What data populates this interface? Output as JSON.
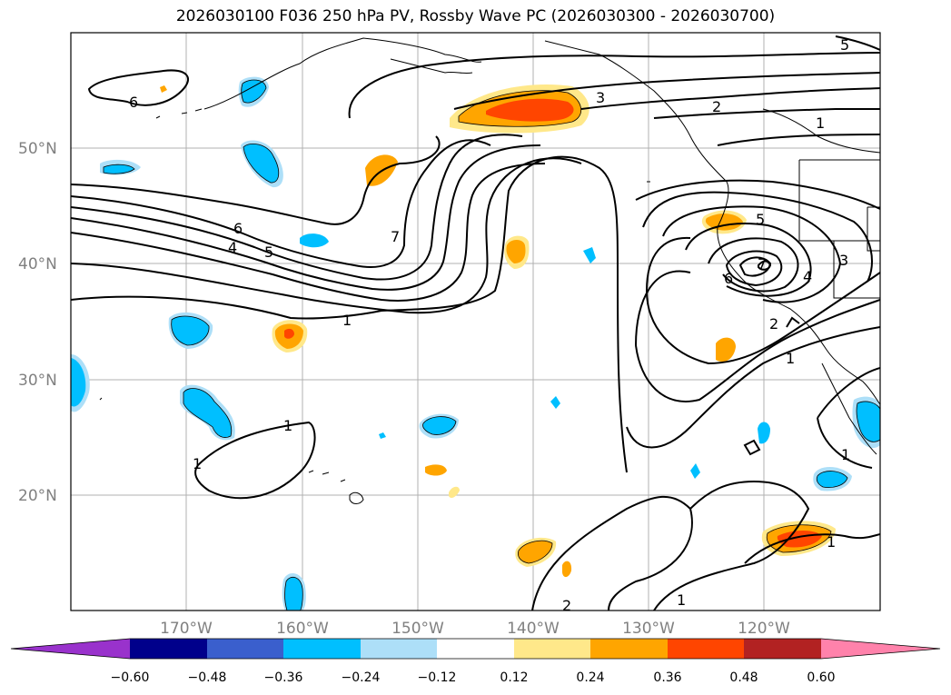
{
  "title": "2026030100 F036 250 hPa PV, Rossby Wave PC (2026030300 - 2026030700)",
  "map": {
    "lat_labels": [
      "50°N",
      "40°N",
      "30°N",
      "20°N"
    ],
    "lon_labels": [
      "170°W",
      "160°W",
      "150°W",
      "140°W",
      "130°W",
      "120°W"
    ],
    "contour_labels": [
      "6",
      "7",
      "6",
      "5",
      "4",
      "1",
      "1",
      "3",
      "2",
      "1",
      "5",
      "5",
      "6",
      "7",
      "4",
      "3",
      "2",
      "1",
      "1",
      "1",
      "2",
      "1",
      "1"
    ]
  },
  "colorbar": {
    "ticks": [
      "−0.60",
      "−0.48",
      "−0.36",
      "−0.24",
      "−0.12",
      "0.12",
      "0.24",
      "0.36",
      "0.48",
      "0.60"
    ],
    "colors": [
      "#9932CC",
      "#00008B",
      "#3A5FCD",
      "#00BFFF",
      "#ADDFF8",
      "#FFFFFF",
      "#FFE88A",
      "#FFA500",
      "#FF4500",
      "#B22222",
      "#FF82AB"
    ]
  }
}
